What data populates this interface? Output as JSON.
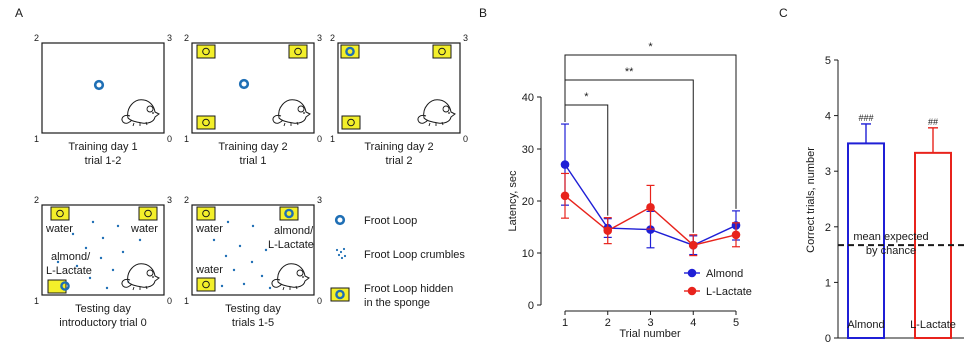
{
  "panels": {
    "a": "A",
    "b": "B",
    "c": "C"
  },
  "colors": {
    "almond": "#1f1fd6",
    "lactate": "#e8231c",
    "froot_loop": "#1f6fb5",
    "sponge": "#f3ef2a"
  },
  "arenas": [
    {
      "line1": "Training day 1",
      "line2": "trial 1-2",
      "corners": [
        "2",
        "3",
        "1",
        "0"
      ]
    },
    {
      "line1": "Training day 2",
      "line2": "trial 1",
      "corners": [
        "2",
        "3",
        "1",
        "0"
      ]
    },
    {
      "line1": "Training day 2",
      "line2": "trial 2",
      "corners": [
        "2",
        "3",
        "1",
        "0"
      ]
    },
    {
      "line1": "Testing day",
      "line2": "introductory trial 0",
      "corners": [
        "2",
        "3",
        "1",
        "0"
      ]
    },
    {
      "line1": "Testing day",
      "line2": "trials 1-5",
      "corners": [
        "2",
        "3",
        "1",
        "0"
      ]
    }
  ],
  "arena_labels": {
    "a4_water_left": "water",
    "a4_water_right": "water",
    "a4_odor_1": "almond/",
    "a4_odor_2": "L-Lactate",
    "a5_water_left_top": "water",
    "a5_water_left_bottom": "water",
    "a5_odor_1": "almond/",
    "a5_odor_2": "L-Lactate"
  },
  "legend_a": {
    "froot_loop": "Froot Loop",
    "crumbles": "Froot Loop crumbles",
    "hidden_1": "Froot Loop hidden",
    "hidden_2": "in the sponge"
  },
  "chart_data": [
    {
      "type": "line",
      "xlabel": "Trial number",
      "ylabel": "Latency, sec",
      "x": [
        1,
        2,
        3,
        4,
        5
      ],
      "xlim": [
        1,
        5
      ],
      "ylim": [
        0,
        40
      ],
      "yticks": [
        0,
        10,
        20,
        30,
        40
      ],
      "series": [
        {
          "name": "Almond",
          "values": [
            27,
            14.8,
            14.5,
            11.5,
            15.3
          ],
          "errors": [
            7.8,
            1.8,
            3.5,
            1.8,
            2.8
          ]
        },
        {
          "name": "L-Lactate",
          "values": [
            21,
            14.3,
            18.8,
            11.5,
            13.5
          ],
          "errors": [
            4.3,
            2.5,
            4.2,
            2.0,
            2.3
          ]
        }
      ],
      "significance": [
        {
          "from": 1,
          "to": 2,
          "label": "*"
        },
        {
          "from": 1,
          "to": 4,
          "label": "**"
        },
        {
          "from": 1,
          "to": 5,
          "label": "*"
        }
      ],
      "legend": "lower-right"
    },
    {
      "type": "bar",
      "ylabel": "Correct trials, number",
      "categories": [
        "Almond",
        "L-Lactate"
      ],
      "values": [
        3.5,
        3.33
      ],
      "errors": [
        0.35,
        0.45
      ],
      "annotations": [
        "###",
        "##"
      ],
      "ylim": [
        0,
        5
      ],
      "yticks": [
        0,
        1,
        2,
        3,
        4,
        5
      ],
      "reference_line": {
        "value": 1.67,
        "label_1": "mean expected",
        "label_2": "by chance"
      }
    }
  ]
}
